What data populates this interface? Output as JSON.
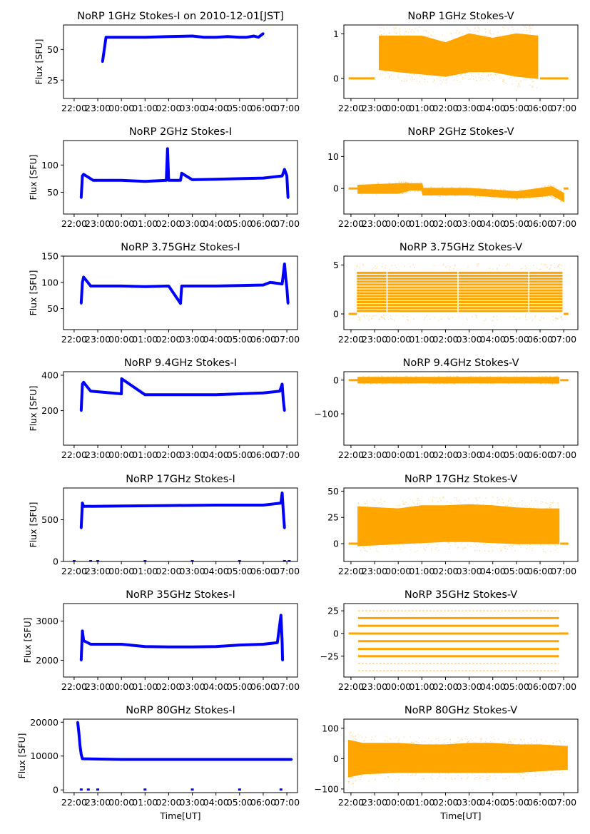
{
  "figure": {
    "x_axis_label": "Time[UT]",
    "y_axis_label": "Flux [SFU]",
    "x_tick_labels": [
      "22:00",
      "23:00",
      "00:00",
      "01:00",
      "02:00",
      "03:00",
      "04:00",
      "05:00",
      "06:00",
      "07:00"
    ],
    "colors": {
      "stokes_i": "#0000ff",
      "stokes_v": "#ffa500",
      "axes": "#000000"
    }
  },
  "chart_data": [
    {
      "type": "scatter",
      "id": "1ghz-i",
      "title": "NoRP 1GHz Stokes-I on 2010-12-01[JST]",
      "xlabel": "",
      "ylabel": "Flux [SFU]",
      "color_key": "stokes_i",
      "xlim_hours": [
        -2.45,
        7.45
      ],
      "ylim": [
        10,
        70
      ],
      "yticks": [
        25,
        50
      ],
      "ytick_labels": [
        "25",
        "50"
      ],
      "series": [
        {
          "name": "Stokes-I",
          "x": [
            -0.8,
            -0.65,
            -0.5,
            0,
            1,
            2,
            3,
            3.5,
            4,
            4.5,
            5,
            5.3,
            5.6,
            5.8,
            6.0
          ],
          "y": [
            40,
            60,
            60,
            60,
            60,
            60.5,
            61,
            60,
            60,
            60.5,
            60,
            60,
            61,
            60,
            63
          ]
        }
      ]
    },
    {
      "type": "scatter",
      "id": "1ghz-v",
      "title": "NoRP 1GHz Stokes-V",
      "xlabel": "",
      "ylabel": "",
      "color_key": "stokes_v",
      "xlim_hours": [
        -2.3,
        7.6
      ],
      "ylim": [
        -0.45,
        1.2
      ],
      "yticks": [
        0,
        1
      ],
      "ytick_labels": [
        "0",
        "1"
      ],
      "series": [
        {
          "name": "Stokes-V band",
          "x": [
            -0.8,
            0,
            1,
            2,
            3,
            4,
            5,
            5.9
          ],
          "y_low": [
            0.2,
            0.15,
            0.1,
            0.05,
            0.15,
            0.15,
            0.05,
            0.0
          ],
          "y_high": [
            0.95,
            0.95,
            0.95,
            0.8,
            1.0,
            0.9,
            1.0,
            0.95
          ]
        },
        {
          "name": "baseline",
          "x": [
            -2.1,
            -1.0,
            6.0,
            7.2
          ],
          "y": [
            0,
            0,
            0,
            0
          ]
        }
      ]
    },
    {
      "type": "scatter",
      "id": "2ghz-i",
      "title": "NoRP 2GHz Stokes-I",
      "xlabel": "",
      "ylabel": "Flux [SFU]",
      "color_key": "stokes_i",
      "xlim_hours": [
        -2.45,
        7.45
      ],
      "ylim": [
        10,
        145
      ],
      "yticks": [
        50,
        100
      ],
      "ytick_labels": [
        "50",
        "100"
      ],
      "series": [
        {
          "name": "Stokes-I",
          "x": [
            -1.7,
            -1.65,
            -1.6,
            -1.2,
            0,
            1,
            1.9,
            1.95,
            2.0,
            2.5,
            2.55,
            3,
            4,
            5,
            6,
            6.8,
            6.9,
            7.0,
            7.05
          ],
          "y": [
            40,
            80,
            83,
            72,
            72,
            70,
            72,
            130,
            72,
            72,
            85,
            73,
            74,
            75,
            76,
            80,
            92,
            80,
            40
          ]
        }
      ]
    },
    {
      "type": "scatter",
      "id": "2ghz-v",
      "title": "NoRP 2GHz Stokes-V",
      "xlabel": "",
      "ylabel": "",
      "color_key": "stokes_v",
      "xlim_hours": [
        -2.3,
        7.6
      ],
      "ylim": [
        -8,
        15
      ],
      "yticks": [
        0,
        10
      ],
      "ytick_labels": [
        "0",
        "10"
      ],
      "series": [
        {
          "name": "Stokes-V band",
          "x": [
            -1.7,
            0,
            0.5,
            1,
            1.05,
            2,
            3,
            4,
            5,
            6,
            6.5,
            7.0
          ],
          "y_low": [
            -1.5,
            -1.5,
            -0.5,
            -0.5,
            -2,
            -2,
            -2,
            -2.5,
            -3,
            -2.5,
            -2,
            -4
          ],
          "y_high": [
            1,
            1.5,
            1.5,
            1.5,
            0,
            0,
            0,
            -0.5,
            -1,
            0,
            0.5,
            -1.5
          ]
        },
        {
          "name": "baseline",
          "x": [
            -2.1,
            -1.7,
            7.0,
            7.2
          ],
          "y": [
            0,
            0,
            0,
            0
          ]
        }
      ]
    },
    {
      "type": "scatter",
      "id": "3.75ghz-i",
      "title": "NoRP 3.75GHz Stokes-I",
      "xlabel": "",
      "ylabel": "Flux [SFU]",
      "color_key": "stokes_i",
      "xlim_hours": [
        -2.45,
        7.45
      ],
      "ylim": [
        10,
        150
      ],
      "yticks": [
        50,
        100,
        150
      ],
      "ytick_labels": [
        "50",
        "100",
        "150"
      ],
      "series": [
        {
          "name": "Stokes-I",
          "x": [
            -1.7,
            -1.65,
            -1.6,
            -1.3,
            0,
            1,
            2,
            2.5,
            2.55,
            3,
            4,
            5,
            6,
            6.3,
            6.8,
            6.9,
            6.95,
            7.0,
            7.05
          ],
          "y": [
            60,
            100,
            110,
            93,
            93,
            92,
            93,
            60,
            93,
            93,
            93,
            94,
            95,
            100,
            97,
            135,
            110,
            90,
            60
          ]
        }
      ]
    },
    {
      "type": "scatter",
      "id": "3.75ghz-v",
      "title": "NoRP 3.75GHz Stokes-V",
      "xlabel": "",
      "ylabel": "",
      "color_key": "stokes_v",
      "xlim_hours": [
        -2.3,
        7.6
      ],
      "ylim": [
        -1.6,
        5.9
      ],
      "yticks": [
        0,
        5
      ],
      "ytick_labels": [
        "0",
        "5"
      ],
      "levels": [
        0.3,
        0.6,
        0.9,
        1.2,
        1.5,
        1.8,
        2.1,
        2.4,
        2.7,
        3.0,
        3.3,
        3.6,
        3.9,
        4.2
      ],
      "series": [
        {
          "name": "Stokes-V band",
          "x_segments": [
            [
              -1.75,
              -0.5
            ],
            [
              -0.45,
              2.5
            ],
            [
              2.55,
              5.5
            ],
            [
              5.55,
              6.95
            ]
          ],
          "y_low": 0.3,
          "y_high": 4.2
        },
        {
          "name": "baseline",
          "x": [
            -2.1,
            -1.75,
            7.0,
            7.2
          ],
          "y": [
            0,
            0,
            0,
            0
          ]
        }
      ]
    },
    {
      "type": "scatter",
      "id": "9.4ghz-i",
      "title": "NoRP 9.4GHz Stokes-I",
      "xlabel": "",
      "ylabel": "Flux [SFU]",
      "color_key": "stokes_i",
      "xlim_hours": [
        -2.45,
        7.45
      ],
      "ylim": [
        5,
        420
      ],
      "yticks": [
        200,
        400
      ],
      "ytick_labels": [
        "200",
        "400"
      ],
      "series": [
        {
          "name": "Stokes-I",
          "x": [
            -1.7,
            -1.65,
            -1.6,
            -1.3,
            0,
            0.01,
            1,
            2,
            3,
            4,
            5,
            6,
            6.7,
            6.8,
            6.85,
            6.9
          ],
          "y": [
            200,
            350,
            360,
            310,
            295,
            380,
            290,
            290,
            290,
            290,
            295,
            300,
            310,
            350,
            260,
            200
          ]
        }
      ]
    },
    {
      "type": "scatter",
      "id": "9.4ghz-v",
      "title": "NoRP 9.4GHz Stokes-V",
      "xlabel": "",
      "ylabel": "",
      "color_key": "stokes_v",
      "xlim_hours": [
        -2.3,
        7.6
      ],
      "ylim": [
        -193,
        25
      ],
      "yticks": [
        -100,
        0
      ],
      "ytick_labels": [
        "−100",
        "0"
      ],
      "series": [
        {
          "name": "Stokes-V band",
          "x": [
            -1.7,
            0,
            2,
            4,
            6,
            6.8
          ],
          "y_low": [
            -8,
            -8,
            -8,
            -8,
            -8,
            -8
          ],
          "y_high": [
            8,
            8,
            8,
            8,
            8,
            8
          ]
        },
        {
          "name": "baseline",
          "x": [
            -2.1,
            -1.7,
            6.85,
            7.2
          ],
          "y": [
            0,
            0,
            0,
            0
          ]
        }
      ]
    },
    {
      "type": "scatter",
      "id": "17ghz-i",
      "title": "NoRP 17GHz Stokes-I",
      "xlabel": "",
      "ylabel": "Flux [SFU]",
      "color_key": "stokes_i",
      "xlim_hours": [
        -2.45,
        7.45
      ],
      "ylim": [
        0,
        880
      ],
      "yticks": [
        0,
        500
      ],
      "ytick_labels": [
        "0",
        "500"
      ],
      "series": [
        {
          "name": "Stokes-I",
          "x": [
            -1.7,
            -1.65,
            -1.6,
            0,
            2,
            4,
            6,
            6.75,
            6.8,
            6.85,
            6.9
          ],
          "y": [
            400,
            700,
            660,
            665,
            670,
            675,
            675,
            700,
            820,
            600,
            400
          ]
        },
        {
          "name": "zero dropouts",
          "x": [
            -2.0,
            -1.3,
            -1.0,
            1.0,
            3.0,
            5.0,
            6.9,
            7.1
          ],
          "y": [
            0,
            0,
            0,
            0,
            0,
            0,
            0,
            0
          ]
        }
      ]
    },
    {
      "type": "scatter",
      "id": "17ghz-v",
      "title": "NoRP 17GHz Stokes-V",
      "xlabel": "",
      "ylabel": "",
      "color_key": "stokes_v",
      "xlim_hours": [
        -2.3,
        7.6
      ],
      "ylim": [
        -17,
        53
      ],
      "yticks": [
        0,
        25,
        50
      ],
      "ytick_labels": [
        "0",
        "25",
        "50"
      ],
      "series": [
        {
          "name": "Stokes-V band",
          "x": [
            -1.7,
            0,
            1,
            2,
            3,
            4,
            5,
            6,
            6.8
          ],
          "y_low": [
            -2,
            0,
            1,
            2,
            2,
            1,
            0,
            0,
            0
          ],
          "y_high": [
            35,
            33,
            36,
            36,
            37,
            36,
            34,
            33,
            33
          ]
        },
        {
          "name": "baseline",
          "x": [
            -2.1,
            -1.7,
            6.85,
            7.2
          ],
          "y": [
            0,
            0,
            0,
            0
          ]
        }
      ]
    },
    {
      "type": "scatter",
      "id": "35ghz-i",
      "title": "NoRP 35GHz Stokes-I",
      "xlabel": "",
      "ylabel": "Flux [SFU]",
      "color_key": "stokes_i",
      "xlim_hours": [
        -2.45,
        7.45
      ],
      "ylim": [
        1570,
        3450
      ],
      "yticks": [
        2000,
        3000
      ],
      "ytick_labels": [
        "2000",
        "3000"
      ],
      "series": [
        {
          "name": "Stokes-I",
          "x": [
            -1.7,
            -1.65,
            -1.6,
            -1.3,
            0,
            0.5,
            1,
            2,
            3,
            4,
            5,
            6,
            6.6,
            6.75,
            6.8,
            6.81,
            6.82
          ],
          "y": [
            2000,
            2750,
            2500,
            2410,
            2410,
            2380,
            2350,
            2340,
            2340,
            2350,
            2390,
            2410,
            2450,
            3150,
            2450,
            2200,
            2000
          ]
        }
      ]
    },
    {
      "type": "scatter",
      "id": "35ghz-v",
      "title": "NoRP 35GHz Stokes-V",
      "xlabel": "",
      "ylabel": "",
      "color_key": "stokes_v",
      "xlim_hours": [
        -2.3,
        7.6
      ],
      "ylim": [
        -48,
        33
      ],
      "yticks": [
        -25,
        0,
        25
      ],
      "ytick_labels": [
        "−25",
        "0",
        "25"
      ],
      "levels": [
        25,
        17,
        8.5,
        0,
        -8.5,
        -17,
        -25,
        -33,
        -41
      ],
      "series": [
        {
          "name": "Stokes-V levels",
          "x_range": [
            -1.7,
            6.8
          ]
        },
        {
          "name": "baseline",
          "x": [
            -2.1,
            -1.7,
            6.8,
            7.2
          ],
          "y": [
            0,
            0,
            0,
            0
          ]
        }
      ]
    },
    {
      "type": "scatter",
      "id": "80ghz-i",
      "title": "NoRP 80GHz Stokes-I",
      "xlabel": "Time[UT]",
      "ylabel": "Flux [SFU]",
      "color_key": "stokes_i",
      "xlim_hours": [
        -2.45,
        7.45
      ],
      "ylim": [
        -800,
        20900
      ],
      "yticks": [
        0,
        10000,
        20000
      ],
      "ytick_labels": [
        "0",
        "10000",
        "20000"
      ],
      "series": [
        {
          "name": "Stokes-I",
          "x": [
            -1.85,
            -1.8,
            -1.75,
            -1.7,
            -1.65,
            0,
            2,
            4,
            6,
            7.2
          ],
          "y": [
            20000,
            17000,
            13000,
            10500,
            9200,
            9000,
            9000,
            9000,
            9000,
            9000
          ]
        },
        {
          "name": "zero dropouts",
          "x": [
            -1.7,
            -1.4,
            -1.0,
            1.0,
            3.0,
            5.0,
            6.75
          ],
          "y": [
            0,
            0,
            0,
            0,
            0,
            0,
            0
          ]
        }
      ]
    },
    {
      "type": "scatter",
      "id": "80ghz-v",
      "title": "NoRP 80GHz Stokes-V",
      "xlabel": "Time[UT]",
      "ylabel": "",
      "color_key": "stokes_v",
      "xlim_hours": [
        -2.3,
        7.6
      ],
      "ylim": [
        -112,
        130
      ],
      "yticks": [
        -100,
        0,
        100
      ],
      "ytick_labels": [
        "−100",
        "0",
        "100"
      ],
      "series": [
        {
          "name": "Stokes-V band",
          "x": [
            -2.1,
            -1.5,
            0,
            1,
            2,
            3,
            4,
            5,
            6,
            7.15
          ],
          "y_low": [
            -60,
            -50,
            -45,
            -45,
            -45,
            -45,
            -45,
            -45,
            -40,
            -35
          ],
          "y_high": [
            60,
            50,
            50,
            45,
            45,
            50,
            50,
            45,
            45,
            40
          ]
        }
      ]
    }
  ]
}
